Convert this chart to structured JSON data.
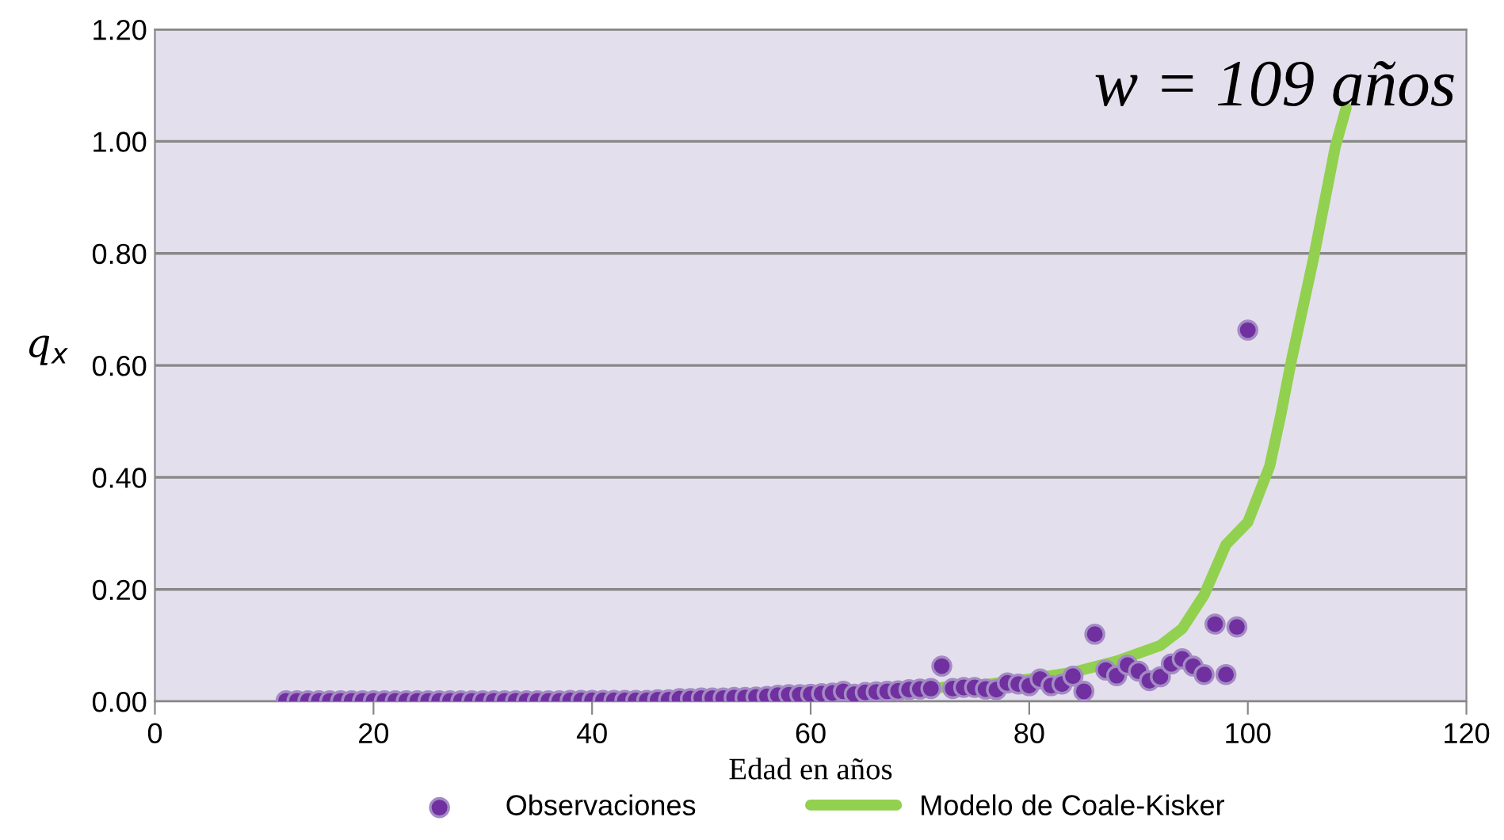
{
  "chart_data": {
    "type": "scatter",
    "xlabel": "Edad en años",
    "ylabel": "q$_{x}$",
    "annotations": [
      "w = 109 años"
    ],
    "xlim": [
      0,
      120
    ],
    "xticks": [
      0,
      20,
      40,
      60,
      80,
      100,
      120
    ],
    "ylim": [
      0,
      1.2
    ],
    "yticks": [
      {
        "value": 0,
        "label": "0.00"
      },
      {
        "value": 0.2,
        "label": "0.20"
      },
      {
        "value": 0.4,
        "label": "0.40"
      },
      {
        "value": 0.6,
        "label": "0.60"
      },
      {
        "value": 0.8,
        "label": "0.80"
      },
      {
        "value": 1.0,
        "label": "1.00"
      },
      {
        "value": 1.2,
        "label": "1.20"
      }
    ],
    "grid": "y",
    "legend": "bottom",
    "series": [
      {
        "name": "Observaciones",
        "marker": "circle",
        "color": "#7030a0",
        "x": [
          12,
          13,
          14,
          15,
          16,
          17,
          18,
          19,
          20,
          21,
          22,
          23,
          24,
          25,
          26,
          27,
          28,
          29,
          30,
          31,
          32,
          33,
          34,
          35,
          36,
          37,
          38,
          39,
          40,
          41,
          42,
          43,
          44,
          45,
          46,
          47,
          48,
          49,
          50,
          51,
          52,
          53,
          54,
          55,
          56,
          57,
          58,
          59,
          60,
          61,
          62,
          63,
          64,
          65,
          66,
          67,
          68,
          69,
          70,
          71,
          72,
          73,
          74,
          75,
          76,
          77,
          78,
          79,
          80,
          81,
          82,
          83,
          84,
          85,
          86,
          87,
          88,
          89,
          90,
          91,
          92,
          93,
          94,
          95,
          96,
          97,
          98,
          99,
          100
        ],
        "values": [
          0.001,
          0.001,
          0.001,
          0.001,
          0.001,
          0.001,
          0.001,
          0.001,
          0.001,
          0.001,
          0.001,
          0.001,
          0.001,
          0.001,
          0.001,
          0.001,
          0.001,
          0.001,
          0.001,
          0.001,
          0.001,
          0.001,
          0.001,
          0.001,
          0.001,
          0.001,
          0.002,
          0.002,
          0.002,
          0.002,
          0.002,
          0.002,
          0.002,
          0.002,
          0.003,
          0.003,
          0.005,
          0.005,
          0.006,
          0.006,
          0.006,
          0.007,
          0.007,
          0.008,
          0.009,
          0.011,
          0.012,
          0.012,
          0.013,
          0.014,
          0.015,
          0.018,
          0.013,
          0.016,
          0.017,
          0.018,
          0.019,
          0.021,
          0.022,
          0.023,
          0.063,
          0.023,
          0.025,
          0.025,
          0.022,
          0.021,
          0.033,
          0.031,
          0.028,
          0.04,
          0.028,
          0.031,
          0.045,
          0.018,
          0.12,
          0.056,
          0.046,
          0.065,
          0.054,
          0.037,
          0.044,
          0.067,
          0.076,
          0.063,
          0.048,
          0.138,
          0.048,
          0.133,
          0.663
        ]
      },
      {
        "name": "Modelo de Coale-Kisker",
        "type": "line",
        "marker": "none",
        "line_style": "solid",
        "color": "#92d050",
        "x": [
          72,
          76,
          80,
          84,
          88,
          92,
          94,
          96,
          98,
          100,
          101,
          102,
          103,
          104,
          105,
          106,
          107,
          108,
          109
        ],
        "values": [
          0.025,
          0.03,
          0.04,
          0.052,
          0.072,
          0.1,
          0.13,
          0.19,
          0.28,
          0.32,
          0.37,
          0.42,
          0.51,
          0.61,
          0.7,
          0.79,
          0.89,
          0.99,
          1.06
        ]
      }
    ]
  }
}
